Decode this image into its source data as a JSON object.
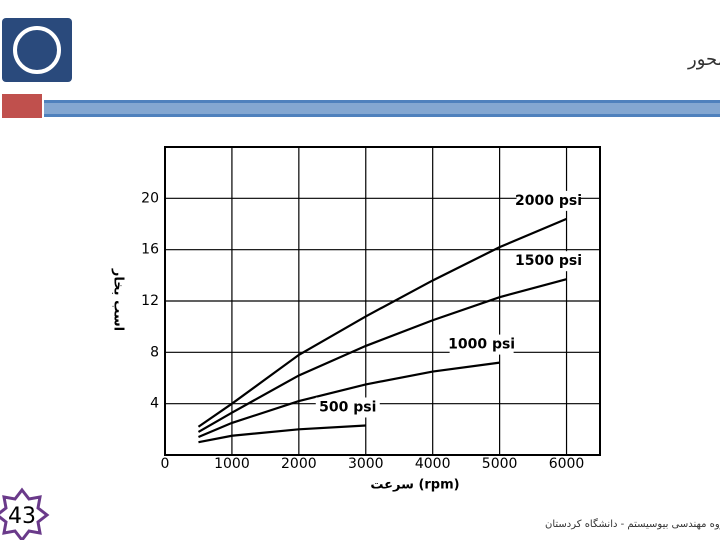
{
  "slide": {
    "title": "توان خروجی محور موتور بر حسب سرعت محور",
    "page_number": "43",
    "footer": "شناخت و طراحی سیستم های هیدرولیک - گروه مهندسی بیوسیستم - دانشگاه کردستان"
  },
  "chart_data": {
    "type": "line",
    "x_label": "سرعت (rpm)",
    "y_label": "اسب بخار",
    "x": [
      500,
      1000,
      2000,
      3000,
      4000,
      5000,
      6000
    ],
    "series": [
      {
        "name": "2000 psi",
        "color": "#000000",
        "values": [
          2.2,
          4,
          7.8,
          10.8,
          13.6,
          16.2,
          18.4
        ]
      },
      {
        "name": "1500 psi",
        "color": "#000000",
        "values": [
          1.8,
          3.3,
          6.2,
          8.5,
          10.5,
          12.3,
          13.7
        ]
      },
      {
        "name": "1000 psi",
        "color": "#000000",
        "values": [
          1.4,
          2.5,
          4.2,
          5.5,
          6.5,
          7.2,
          null
        ]
      },
      {
        "name": "500 psi",
        "color": "#000000",
        "values": [
          1,
          1.5,
          2,
          2.3,
          null,
          null,
          null
        ]
      }
    ],
    "xlim": [
      0,
      6500
    ],
    "xticks": [
      0,
      1000,
      2000,
      3000,
      4000,
      5000,
      6000
    ],
    "ylim": [
      0,
      24
    ],
    "yticks": [
      4,
      8,
      12,
      16,
      20
    ],
    "grid": true
  }
}
